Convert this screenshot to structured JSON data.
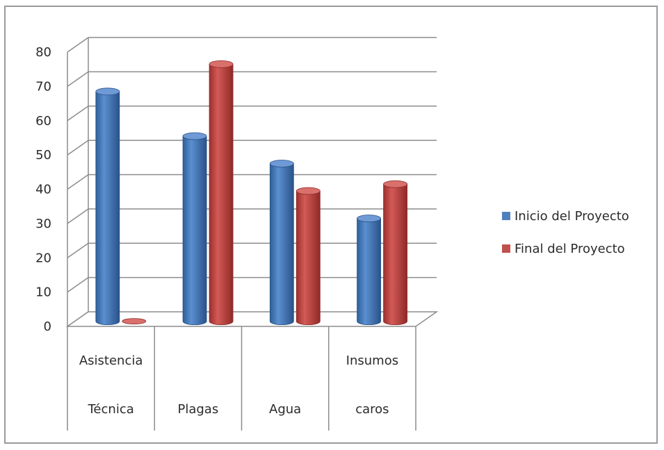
{
  "chart_data": {
    "type": "bar",
    "categories": [
      [
        "Asistencia",
        "Técnica"
      ],
      [
        "",
        "Plagas"
      ],
      [
        "",
        "Agua"
      ],
      [
        "Insumos",
        "caros"
      ]
    ],
    "series": [
      {
        "name": "Inicio del Proyecto",
        "color": "#4f81bd",
        "values": [
          67,
          54,
          46,
          30
        ]
      },
      {
        "name": "Final del Proyecto",
        "color": "#c0504d",
        "values": [
          0,
          75,
          38,
          40
        ]
      }
    ],
    "ylim": [
      0,
      80
    ],
    "yticks": [
      0,
      10,
      20,
      30,
      40,
      50,
      60,
      70,
      80
    ],
    "grid": true,
    "legend_position": "right",
    "style": "3d-cylinder"
  }
}
